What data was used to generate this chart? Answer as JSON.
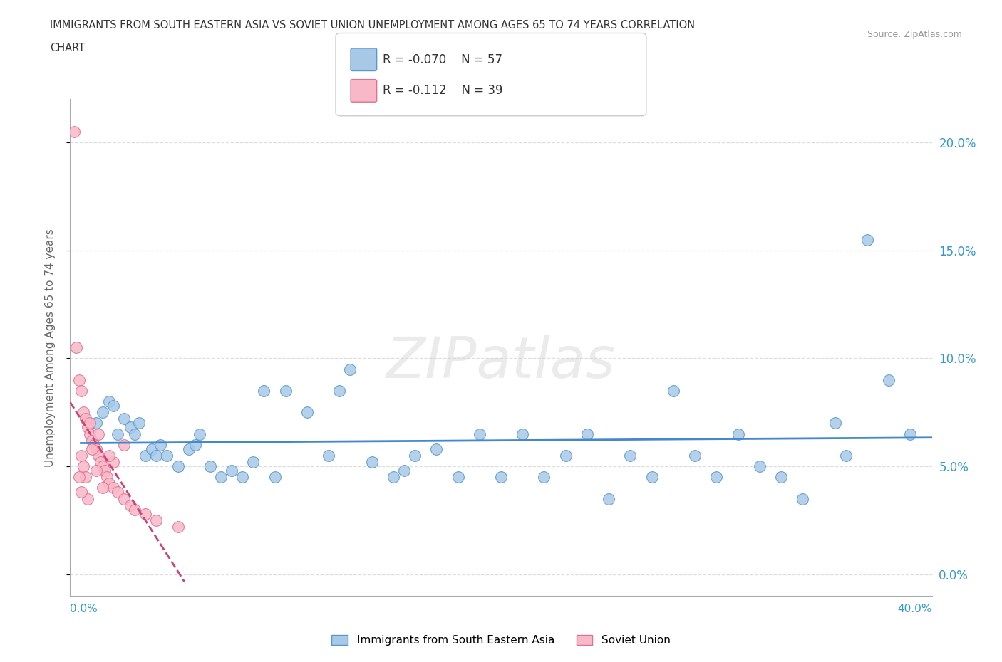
{
  "title_line1": "IMMIGRANTS FROM SOUTH EASTERN ASIA VS SOVIET UNION UNEMPLOYMENT AMONG AGES 65 TO 74 YEARS CORRELATION",
  "title_line2": "CHART",
  "source": "Source: ZipAtlas.com",
  "ylabel": "Unemployment Among Ages 65 to 74 years",
  "xlim": [
    0.0,
    40.0
  ],
  "ylim": [
    -1.0,
    22.0
  ],
  "ytick_vals": [
    0.0,
    5.0,
    10.0,
    15.0,
    20.0
  ],
  "xtick_left": "0.0%",
  "xtick_right": "40.0%",
  "sea_label": "Immigrants from South Eastern Asia",
  "sov_label": "Soviet Union",
  "sea_R": "-0.070",
  "sea_N": "57",
  "sov_R": "-0.112",
  "sov_N": "39",
  "sea_face": "#a8c8e8",
  "sea_edge": "#5599cc",
  "sea_line": "#4488cc",
  "sov_face": "#f8b8c8",
  "sov_edge": "#e07090",
  "sov_line": "#cc4477",
  "watermark": "ZIPatlas",
  "sea_x": [
    1.2,
    1.5,
    1.8,
    2.0,
    2.2,
    2.5,
    2.8,
    3.0,
    3.2,
    3.5,
    3.8,
    4.0,
    4.2,
    4.5,
    5.0,
    5.5,
    5.8,
    6.0,
    6.5,
    7.0,
    7.5,
    8.0,
    8.5,
    9.0,
    9.5,
    10.0,
    11.0,
    12.0,
    12.5,
    13.0,
    14.0,
    15.0,
    15.5,
    16.0,
    17.0,
    18.0,
    19.0,
    20.0,
    21.0,
    22.0,
    23.0,
    24.0,
    25.0,
    26.0,
    27.0,
    28.0,
    29.0,
    30.0,
    31.0,
    32.0,
    33.0,
    34.0,
    35.5,
    36.0,
    37.0,
    38.0,
    39.0
  ],
  "sea_y": [
    7.0,
    7.5,
    8.0,
    7.8,
    6.5,
    7.2,
    6.8,
    6.5,
    7.0,
    5.5,
    5.8,
    5.5,
    6.0,
    5.5,
    5.0,
    5.8,
    6.0,
    6.5,
    5.0,
    4.5,
    4.8,
    4.5,
    5.2,
    8.5,
    4.5,
    8.5,
    7.5,
    5.5,
    8.5,
    9.5,
    5.2,
    4.5,
    4.8,
    5.5,
    5.8,
    4.5,
    6.5,
    4.5,
    6.5,
    4.5,
    5.5,
    6.5,
    3.5,
    5.5,
    4.5,
    8.5,
    5.5,
    4.5,
    6.5,
    5.0,
    4.5,
    3.5,
    7.0,
    5.5,
    15.5,
    9.0,
    6.5
  ],
  "sov_x": [
    0.2,
    0.3,
    0.4,
    0.5,
    0.6,
    0.7,
    0.8,
    0.9,
    1.0,
    1.1,
    1.2,
    1.3,
    1.4,
    1.5,
    1.6,
    1.7,
    1.8,
    2.0,
    2.2,
    2.5,
    2.8,
    3.0,
    3.5,
    4.0,
    5.0,
    0.5,
    0.6,
    0.7,
    1.0,
    1.2,
    1.5,
    2.0,
    0.8,
    1.3,
    0.9,
    0.4,
    0.5,
    1.8,
    2.5
  ],
  "sov_y": [
    20.5,
    10.5,
    9.0,
    8.5,
    7.5,
    7.2,
    6.8,
    6.5,
    6.2,
    6.0,
    5.8,
    5.5,
    5.2,
    5.0,
    4.8,
    4.5,
    4.2,
    4.0,
    3.8,
    3.5,
    3.2,
    3.0,
    2.8,
    2.5,
    2.2,
    5.5,
    5.0,
    4.5,
    5.8,
    4.8,
    4.0,
    5.2,
    3.5,
    6.5,
    7.0,
    4.5,
    3.8,
    5.5,
    6.0
  ]
}
